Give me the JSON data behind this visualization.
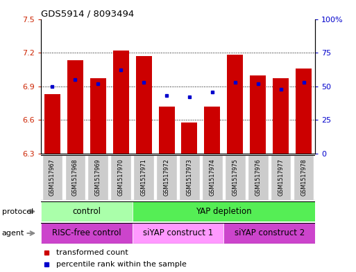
{
  "title": "GDS5914 / 8093494",
  "samples": [
    "GSM1517967",
    "GSM1517968",
    "GSM1517969",
    "GSM1517970",
    "GSM1517971",
    "GSM1517972",
    "GSM1517973",
    "GSM1517974",
    "GSM1517975",
    "GSM1517976",
    "GSM1517977",
    "GSM1517978"
  ],
  "transformed_count": [
    6.83,
    7.13,
    6.97,
    7.22,
    7.17,
    6.72,
    6.58,
    6.72,
    7.18,
    7.0,
    6.97,
    7.06
  ],
  "percentile_rank": [
    50,
    55,
    52,
    62,
    53,
    43,
    42,
    46,
    53,
    52,
    48,
    53
  ],
  "ylim_left": [
    6.3,
    7.5
  ],
  "ylim_right": [
    0,
    100
  ],
  "yticks_left": [
    6.3,
    6.6,
    6.9,
    7.2,
    7.5
  ],
  "yticks_right": [
    0,
    25,
    50,
    75,
    100
  ],
  "ytick_labels_left": [
    "6.3",
    "6.6",
    "6.9",
    "7.2",
    "7.5"
  ],
  "ytick_labels_right": [
    "0",
    "25",
    "50",
    "75",
    "100%"
  ],
  "bar_color": "#cc0000",
  "dot_color": "#0000cc",
  "protocol_groups": [
    {
      "label": "control",
      "start": 0,
      "end": 4,
      "color": "#aaffaa"
    },
    {
      "label": "YAP depletion",
      "start": 4,
      "end": 12,
      "color": "#55ee55"
    }
  ],
  "agent_groups": [
    {
      "label": "RISC-free control",
      "start": 0,
      "end": 4,
      "color": "#cc44cc"
    },
    {
      "label": "siYAP construct 1",
      "start": 4,
      "end": 8,
      "color": "#ff99ff"
    },
    {
      "label": "siYAP construct 2",
      "start": 8,
      "end": 12,
      "color": "#cc44cc"
    }
  ],
  "legend_items": [
    {
      "label": "transformed count",
      "color": "#cc0000"
    },
    {
      "label": "percentile rank within the sample",
      "color": "#0000cc"
    }
  ],
  "protocol_label": "protocol",
  "agent_label": "agent",
  "left_axis_color": "#cc2200",
  "right_axis_color": "#0000cc",
  "sample_box_color": "#cccccc",
  "sample_box_edge": "#ffffff"
}
